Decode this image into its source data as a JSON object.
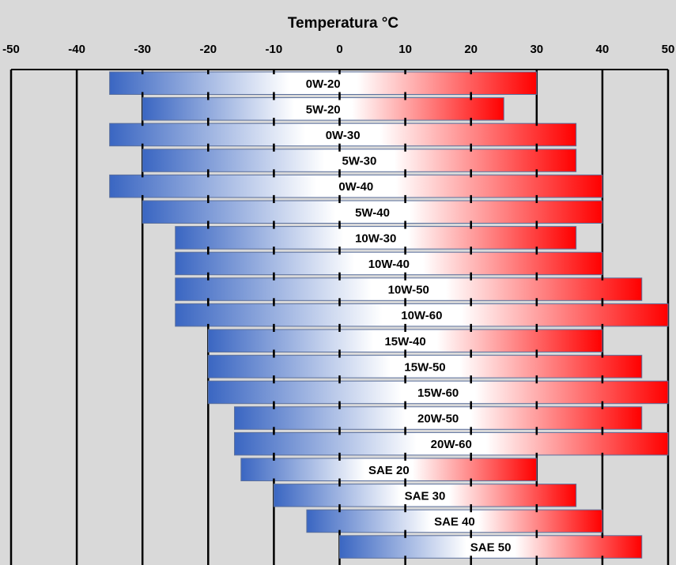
{
  "chart_data": {
    "type": "bar",
    "orientation": "horizontal-range",
    "title": "Temperatura °C",
    "xlim": [
      -50,
      50
    ],
    "x_ticks": [
      "-50",
      "-40",
      "-30",
      "-20",
      "-10",
      "0",
      "10",
      "20",
      "30",
      "40",
      "50"
    ],
    "grid": true,
    "colors": {
      "cold": "#3a66c2",
      "mid": "#ffffff",
      "hot": "#ff0000",
      "background": "#d9d9d9"
    },
    "series": [
      {
        "name": "0W-20",
        "start": -35,
        "end": 30
      },
      {
        "name": "5W-20",
        "start": -30,
        "end": 25
      },
      {
        "name": "0W-30",
        "start": -35,
        "end": 36
      },
      {
        "name": "5W-30",
        "start": -30,
        "end": 36
      },
      {
        "name": "0W-40",
        "start": -35,
        "end": 40
      },
      {
        "name": "5W-40",
        "start": -30,
        "end": 40
      },
      {
        "name": "10W-30",
        "start": -25,
        "end": 36
      },
      {
        "name": "10W-40",
        "start": -25,
        "end": 40
      },
      {
        "name": "10W-50",
        "start": -25,
        "end": 46
      },
      {
        "name": "10W-60",
        "start": -25,
        "end": 50
      },
      {
        "name": "15W-40",
        "start": -20,
        "end": 40
      },
      {
        "name": "15W-50",
        "start": -20,
        "end": 46
      },
      {
        "name": "15W-60",
        "start": -20,
        "end": 50
      },
      {
        "name": "20W-50",
        "start": -16,
        "end": 46
      },
      {
        "name": "20W-60",
        "start": -16,
        "end": 50
      },
      {
        "name": "SAE 20",
        "start": -15,
        "end": 30
      },
      {
        "name": "SAE 30",
        "start": -10,
        "end": 36
      },
      {
        "name": "SAE 40",
        "start": -5,
        "end": 40
      },
      {
        "name": "SAE 50",
        "start": 0,
        "end": 46
      }
    ]
  }
}
